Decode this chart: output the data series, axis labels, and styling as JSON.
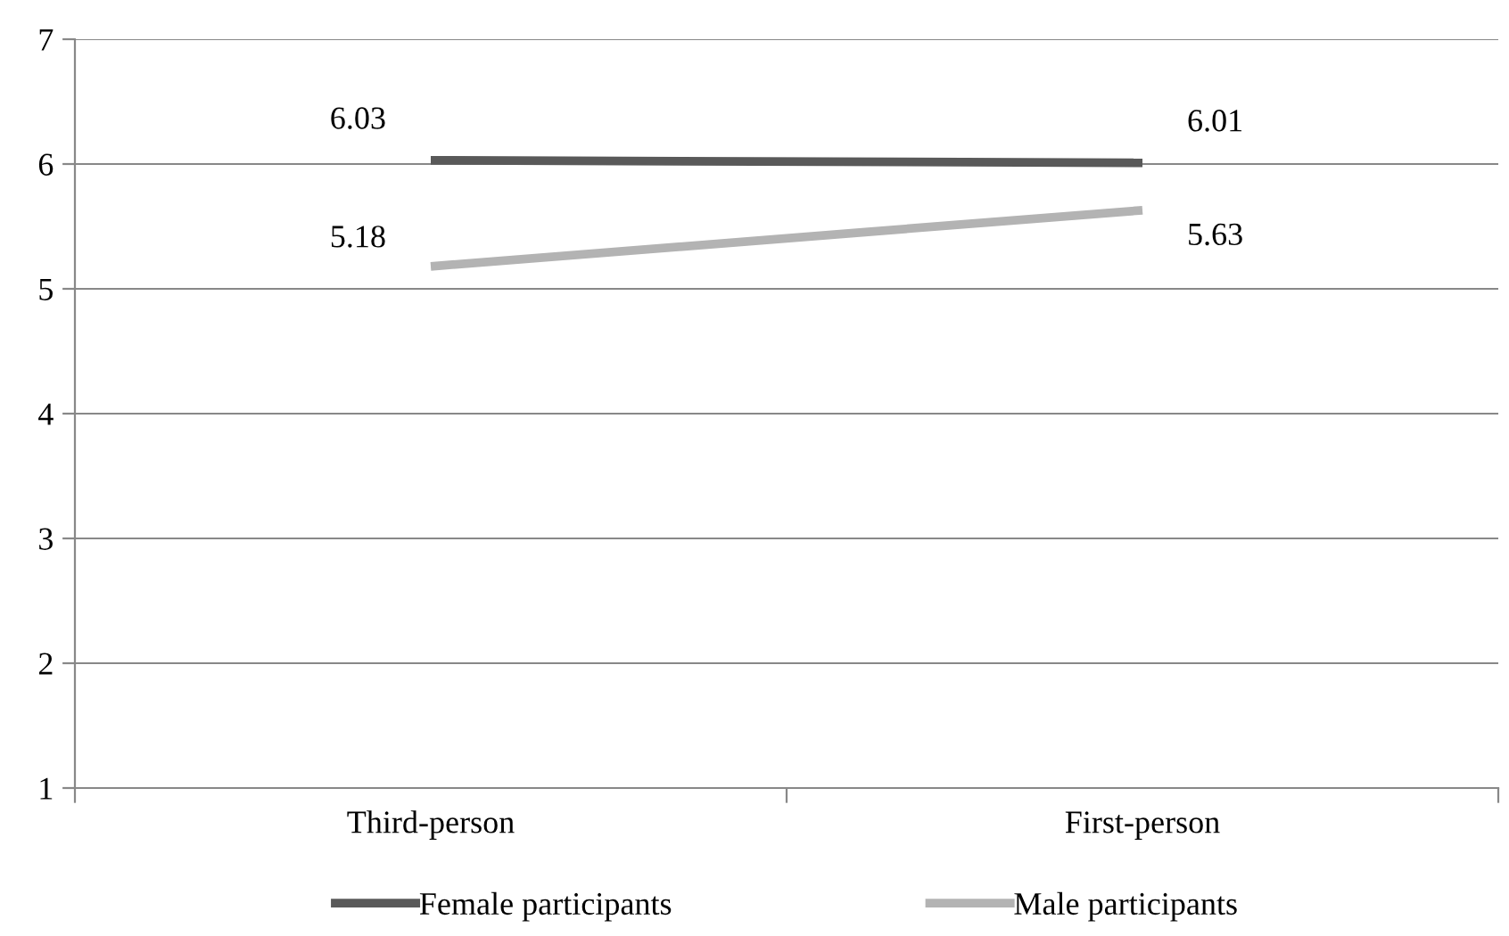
{
  "chart_data": {
    "type": "line",
    "categories": [
      "Third-person",
      "First-person"
    ],
    "series": [
      {
        "name": "Female participants",
        "color": "#595959",
        "values": [
          6.03,
          6.01
        ]
      },
      {
        "name": "Male participants",
        "color": "#b3b3b3",
        "values": [
          5.18,
          5.63
        ]
      }
    ],
    "ylim": [
      1,
      7
    ],
    "yticks": [
      1,
      2,
      3,
      4,
      5,
      6,
      7
    ],
    "grid": "y",
    "legend": "bottom",
    "data_labels": true,
    "marker": "none",
    "line_style": "solid"
  }
}
